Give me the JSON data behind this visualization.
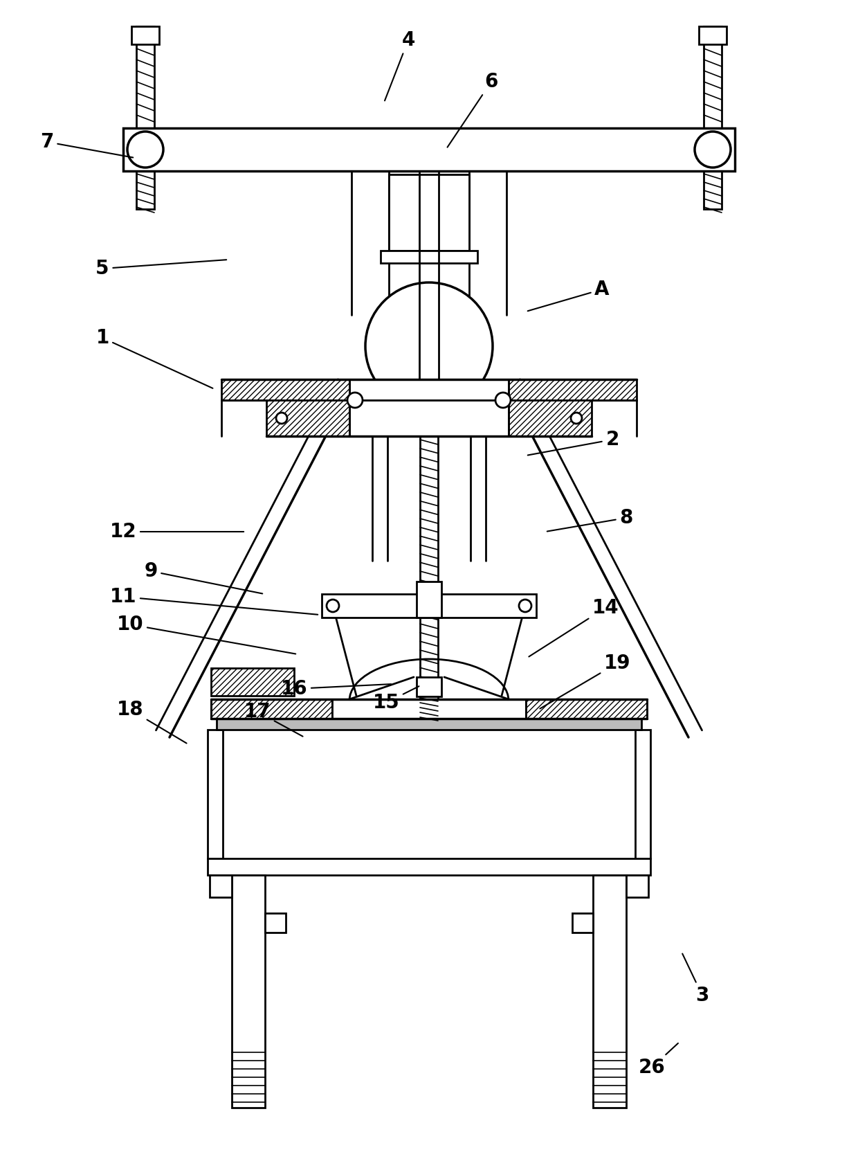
{
  "bg_color": "#ffffff",
  "line_color": "#000000",
  "figsize": [
    12.4,
    16.64
  ],
  "dpi": 100,
  "labels_info": [
    [
      "4",
      590,
      58,
      555,
      148
    ],
    [
      "6",
      710,
      118,
      645,
      215
    ],
    [
      "7",
      68,
      205,
      195,
      228
    ],
    [
      "5",
      148,
      388,
      330,
      375
    ],
    [
      "A",
      870,
      418,
      760,
      450
    ],
    [
      "1",
      148,
      488,
      310,
      562
    ],
    [
      "2",
      885,
      635,
      760,
      658
    ],
    [
      "12",
      178,
      768,
      355,
      768
    ],
    [
      "9",
      218,
      825,
      382,
      858
    ],
    [
      "8",
      905,
      748,
      788,
      768
    ],
    [
      "11",
      178,
      862,
      462,
      888
    ],
    [
      "10",
      188,
      902,
      430,
      945
    ],
    [
      "14",
      875,
      878,
      762,
      950
    ],
    [
      "16",
      425,
      995,
      568,
      988
    ],
    [
      "15",
      558,
      1015,
      608,
      990
    ],
    [
      "17",
      372,
      1028,
      440,
      1065
    ],
    [
      "18",
      188,
      1025,
      272,
      1075
    ],
    [
      "19",
      892,
      958,
      778,
      1025
    ],
    [
      "3",
      1015,
      1438,
      985,
      1375
    ],
    [
      "26",
      942,
      1542,
      982,
      1505
    ]
  ]
}
